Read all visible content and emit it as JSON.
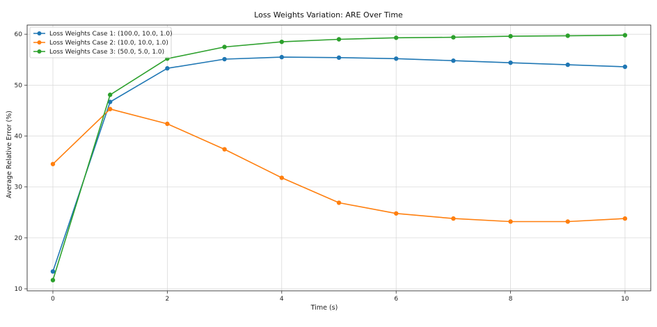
{
  "chart_data": {
    "type": "line",
    "title": "Loss Weights Variation: ARE Over Time",
    "xlabel": "Time (s)",
    "ylabel": "Average Relative Error (%)",
    "xlim": [
      -0.45,
      10.45
    ],
    "ylim": [
      9.6,
      61.8
    ],
    "xticks": [
      0,
      2,
      4,
      6,
      8,
      10
    ],
    "yticks": [
      10,
      20,
      30,
      40,
      50,
      60
    ],
    "grid": true,
    "legend_position": "top-left",
    "x": [
      0,
      1,
      2,
      3,
      4,
      5,
      6,
      7,
      8,
      9,
      10
    ],
    "series": [
      {
        "name": "Loss Weights Case 1: (100.0, 10.0, 1.0)",
        "color": "#1f77b4",
        "values": [
          13.4,
          46.7,
          53.3,
          55.1,
          55.5,
          55.4,
          55.2,
          54.8,
          54.4,
          54.0,
          53.6
        ]
      },
      {
        "name": "Loss Weights Case 2: (10.0, 10.0, 1.0)",
        "color": "#ff7f0e",
        "values": [
          34.5,
          45.3,
          42.4,
          37.4,
          31.8,
          26.9,
          24.8,
          23.8,
          23.2,
          23.2,
          23.8
        ]
      },
      {
        "name": "Loss Weights Case 3: (50.0, 5.0, 1.0)",
        "color": "#2ca02c",
        "values": [
          11.7,
          48.1,
          55.2,
          57.5,
          58.5,
          59.0,
          59.3,
          59.4,
          59.6,
          59.7,
          59.8
        ]
      }
    ]
  }
}
